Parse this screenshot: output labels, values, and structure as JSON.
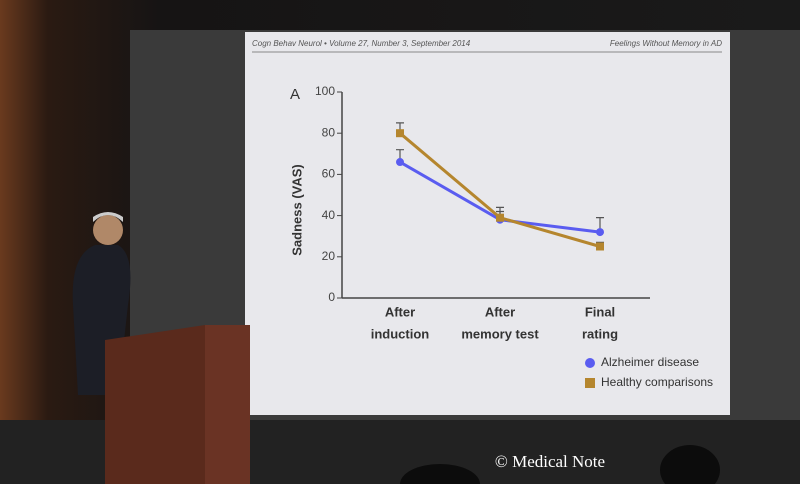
{
  "slide": {
    "header_left": "Cogn Behav Neurol • Volume 27, Number 3, September 2014",
    "header_right": "Feelings Without Memory in AD"
  },
  "chart_data": {
    "type": "line",
    "panel_label": "A",
    "y_label": "Sadness (VAS)",
    "categories": [
      [
        "After",
        "induction"
      ],
      [
        "After",
        "memory test"
      ],
      [
        "Final",
        "rating"
      ]
    ],
    "ylim": [
      0,
      100
    ],
    "yticks": [
      0,
      20,
      40,
      60,
      80,
      100
    ],
    "legend": "bottom-right",
    "series": [
      {
        "name": "Alzheimer disease",
        "color": "#5a5cf0",
        "marker": "circle",
        "values": [
          66,
          38,
          32
        ],
        "errors": [
          6,
          4,
          7
        ]
      },
      {
        "name": "Healthy comparisons",
        "color": "#b5862e",
        "marker": "square",
        "values": [
          80,
          39,
          25
        ],
        "errors": [
          5,
          5,
          2
        ]
      }
    ]
  },
  "watermark": "© Medical Note"
}
